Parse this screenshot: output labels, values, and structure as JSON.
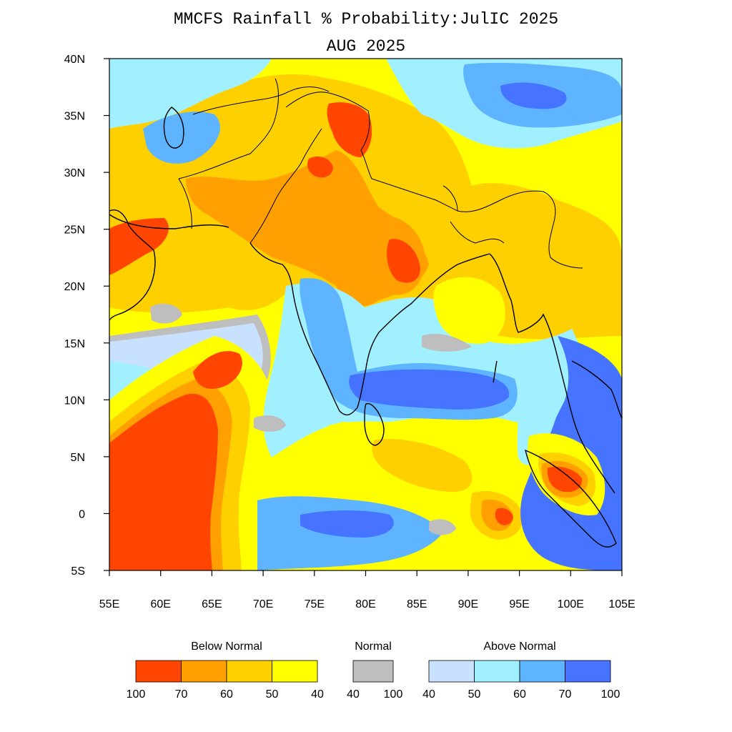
{
  "title_line1": "MMCFS Rainfall % Probability:JulIC 2025",
  "title_line2": "AUG 2025",
  "axes": {
    "lon_ticks": [
      "55E",
      "60E",
      "65E",
      "70E",
      "75E",
      "80E",
      "85E",
      "90E",
      "95E",
      "100E",
      "105E"
    ],
    "lat_ticks": [
      "40N",
      "35N",
      "30N",
      "25N",
      "20N",
      "15N",
      "10N",
      "5N",
      "0",
      "5S"
    ],
    "lon_range": [
      55,
      105
    ],
    "lat_range": [
      -5,
      40
    ]
  },
  "colors": {
    "below_100_70": "#ff4500",
    "below_70_60": "#ffa000",
    "below_60_50": "#ffd000",
    "below_50_40": "#ffff00",
    "normal": "#bebebe",
    "above_40_50": "#c8e1ff",
    "above_50_60": "#a0f0ff",
    "above_60_70": "#5fb4ff",
    "above_70_100": "#4673ff",
    "none": "#ffffff"
  },
  "legend": {
    "below": {
      "label": "Below Normal",
      "colors": [
        "#ff4500",
        "#ffa000",
        "#ffd000",
        "#ffff00"
      ],
      "ticks": [
        "100",
        "70",
        "60",
        "50",
        "40"
      ]
    },
    "normal": {
      "label": "Normal",
      "colors": [
        "#bebebe"
      ],
      "ticks": [
        "40",
        "100"
      ]
    },
    "above": {
      "label": "Above Normal",
      "colors": [
        "#c8e1ff",
        "#a0f0ff",
        "#5fb4ff",
        "#4673ff"
      ],
      "ticks": [
        "40",
        "50",
        "60",
        "70",
        "100"
      ]
    }
  }
}
